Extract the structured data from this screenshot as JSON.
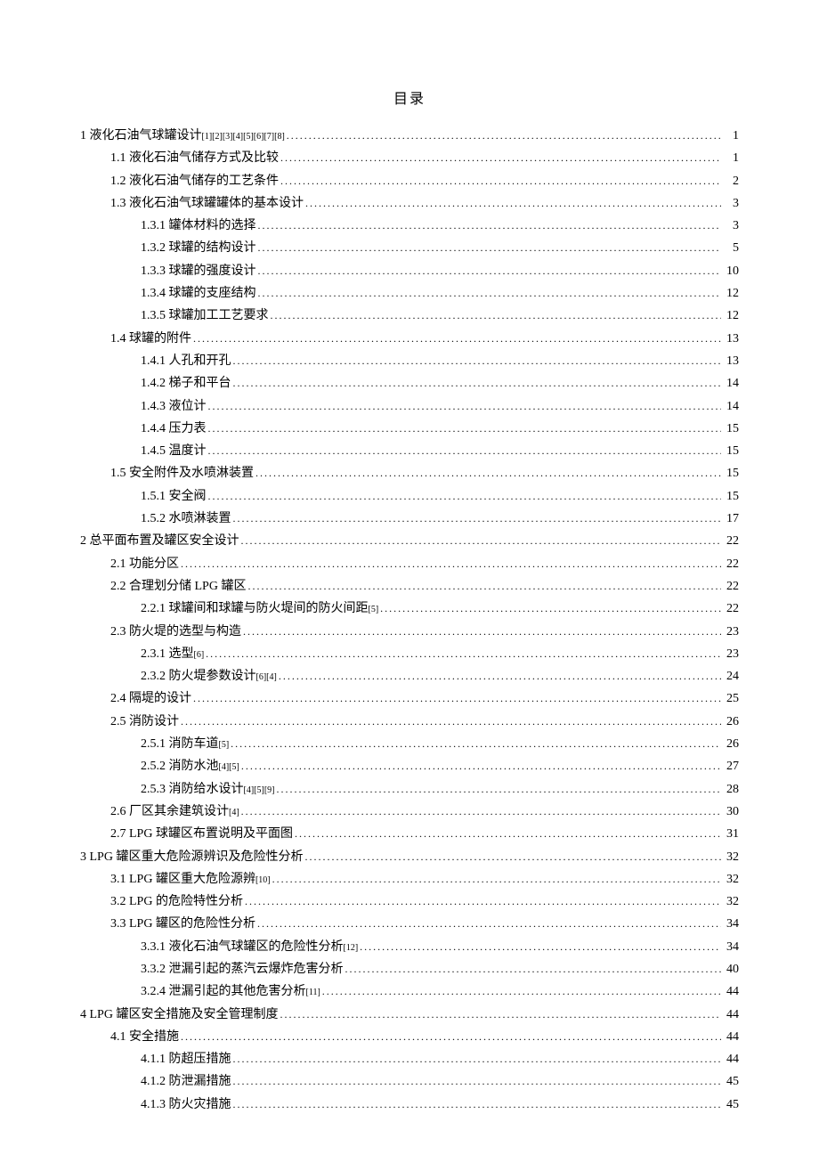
{
  "title": "目录",
  "entries": [
    {
      "level": 1,
      "label": "1 液化石油气球罐设计",
      "refs": "[1][2][3][4][5][6][7][8]",
      "page": "1"
    },
    {
      "level": 2,
      "label": "1.1 液化石油气储存方式及比较",
      "refs": "",
      "page": "1"
    },
    {
      "level": 2,
      "label": "1.2 液化石油气储存的工艺条件",
      "refs": "",
      "page": "2"
    },
    {
      "level": 2,
      "label": "1.3 液化石油气球罐罐体的基本设计",
      "refs": "",
      "page": "3"
    },
    {
      "level": 3,
      "label": "1.3.1 罐体材料的选择",
      "refs": "",
      "page": "3"
    },
    {
      "level": 3,
      "label": "1.3.2 球罐的结构设计",
      "refs": "",
      "page": "5"
    },
    {
      "level": 3,
      "label": "1.3.3 球罐的强度设计",
      "refs": "",
      "page": "10"
    },
    {
      "level": 3,
      "label": "1.3.4 球罐的支座结构",
      "refs": "",
      "page": "12"
    },
    {
      "level": 3,
      "label": "1.3.5 球罐加工工艺要求",
      "refs": "",
      "page": "12"
    },
    {
      "level": 2,
      "label": "1.4 球罐的附件",
      "refs": "",
      "page": "13"
    },
    {
      "level": 3,
      "label": "1.4.1 人孔和开孔",
      "refs": "",
      "page": "13"
    },
    {
      "level": 3,
      "label": "1.4.2 梯子和平台",
      "refs": "",
      "page": "14"
    },
    {
      "level": 3,
      "label": "1.4.3 液位计",
      "refs": "",
      "page": "14"
    },
    {
      "level": 3,
      "label": "1.4.4 压力表",
      "refs": "",
      "page": "15"
    },
    {
      "level": 3,
      "label": "1.4.5 温度计",
      "refs": "",
      "page": "15"
    },
    {
      "level": 2,
      "label": "1.5 安全附件及水喷淋装置",
      "refs": "",
      "page": "15"
    },
    {
      "level": 3,
      "label": "1.5.1 安全阀",
      "refs": "",
      "page": "15"
    },
    {
      "level": 3,
      "label": "1.5.2 水喷淋装置",
      "refs": "",
      "page": "17"
    },
    {
      "level": 1,
      "label": "2 总平面布置及罐区安全设计",
      "refs": "",
      "page": "22"
    },
    {
      "level": 2,
      "label": "2.1 功能分区",
      "refs": "",
      "page": "22"
    },
    {
      "level": 2,
      "label": "2.2 合理划分储 LPG 罐区",
      "refs": "",
      "page": "22"
    },
    {
      "level": 3,
      "label": "2.2.1 球罐间和球罐与防火堤间的防火间距",
      "refs": "[5]",
      "page": "22"
    },
    {
      "level": 2,
      "label": "2.3 防火堤的选型与构造",
      "refs": "",
      "page": "23"
    },
    {
      "level": 3,
      "label": "2.3.1 选型",
      "refs": "[6]",
      "page": "23"
    },
    {
      "level": 3,
      "label": "2.3.2 防火堤参数设计",
      "refs": "[6][4]",
      "page": "24"
    },
    {
      "level": 2,
      "label": "2.4 隔堤的设计",
      "refs": "",
      "page": "25"
    },
    {
      "level": 2,
      "label": "2.5 消防设计",
      "refs": "",
      "page": "26"
    },
    {
      "level": 3,
      "label": "2.5.1 消防车道",
      "refs": "[5]",
      "page": "26"
    },
    {
      "level": 3,
      "label": "2.5.2 消防水池",
      "refs": "[4][5]",
      "page": "27"
    },
    {
      "level": 3,
      "label": "2.5.3 消防给水设计",
      "refs": "[4][5][9]",
      "page": "28"
    },
    {
      "level": 2,
      "label": "2.6 厂区其余建筑设计",
      "refs": "[4]",
      "page": "30"
    },
    {
      "level": 2,
      "label": "2.7 LPG 球罐区布置说明及平面图",
      "refs": "",
      "page": "31"
    },
    {
      "level": 1,
      "label": "3 LPG 罐区重大危险源辨识及危险性分析",
      "refs": "",
      "page": "32"
    },
    {
      "level": 2,
      "label": "3.1 LPG 罐区重大危险源辨",
      "refs": "[10]",
      "page": "32"
    },
    {
      "level": 2,
      "label": "3.2 LPG 的危险特性分析",
      "refs": "",
      "page": "32"
    },
    {
      "level": 2,
      "label": "3.3 LPG 罐区的危险性分析",
      "refs": "",
      "page": "34"
    },
    {
      "level": 3,
      "label": "3.3.1 液化石油气球罐区的危险性分析",
      "refs": "[12]",
      "page": "34"
    },
    {
      "level": 3,
      "label": "3.3.2 泄漏引起的蒸汽云爆炸危害分析",
      "refs": "",
      "page": "40"
    },
    {
      "level": 3,
      "label": "3.2.4 泄漏引起的其他危害分析",
      "refs": "[11]",
      "page": "44"
    },
    {
      "level": 1,
      "label": "4 LPG 罐区安全措施及安全管理制度",
      "refs": "",
      "page": "44"
    },
    {
      "level": 2,
      "label": "4.1 安全措施",
      "refs": "",
      "page": "44"
    },
    {
      "level": 3,
      "label": "4.1.1 防超压措施",
      "refs": "",
      "page": "44"
    },
    {
      "level": 3,
      "label": "4.1.2 防泄漏措施",
      "refs": "",
      "page": "45"
    },
    {
      "level": 3,
      "label": "4.1.3 防火灾措施",
      "refs": "",
      "page": "45"
    }
  ]
}
